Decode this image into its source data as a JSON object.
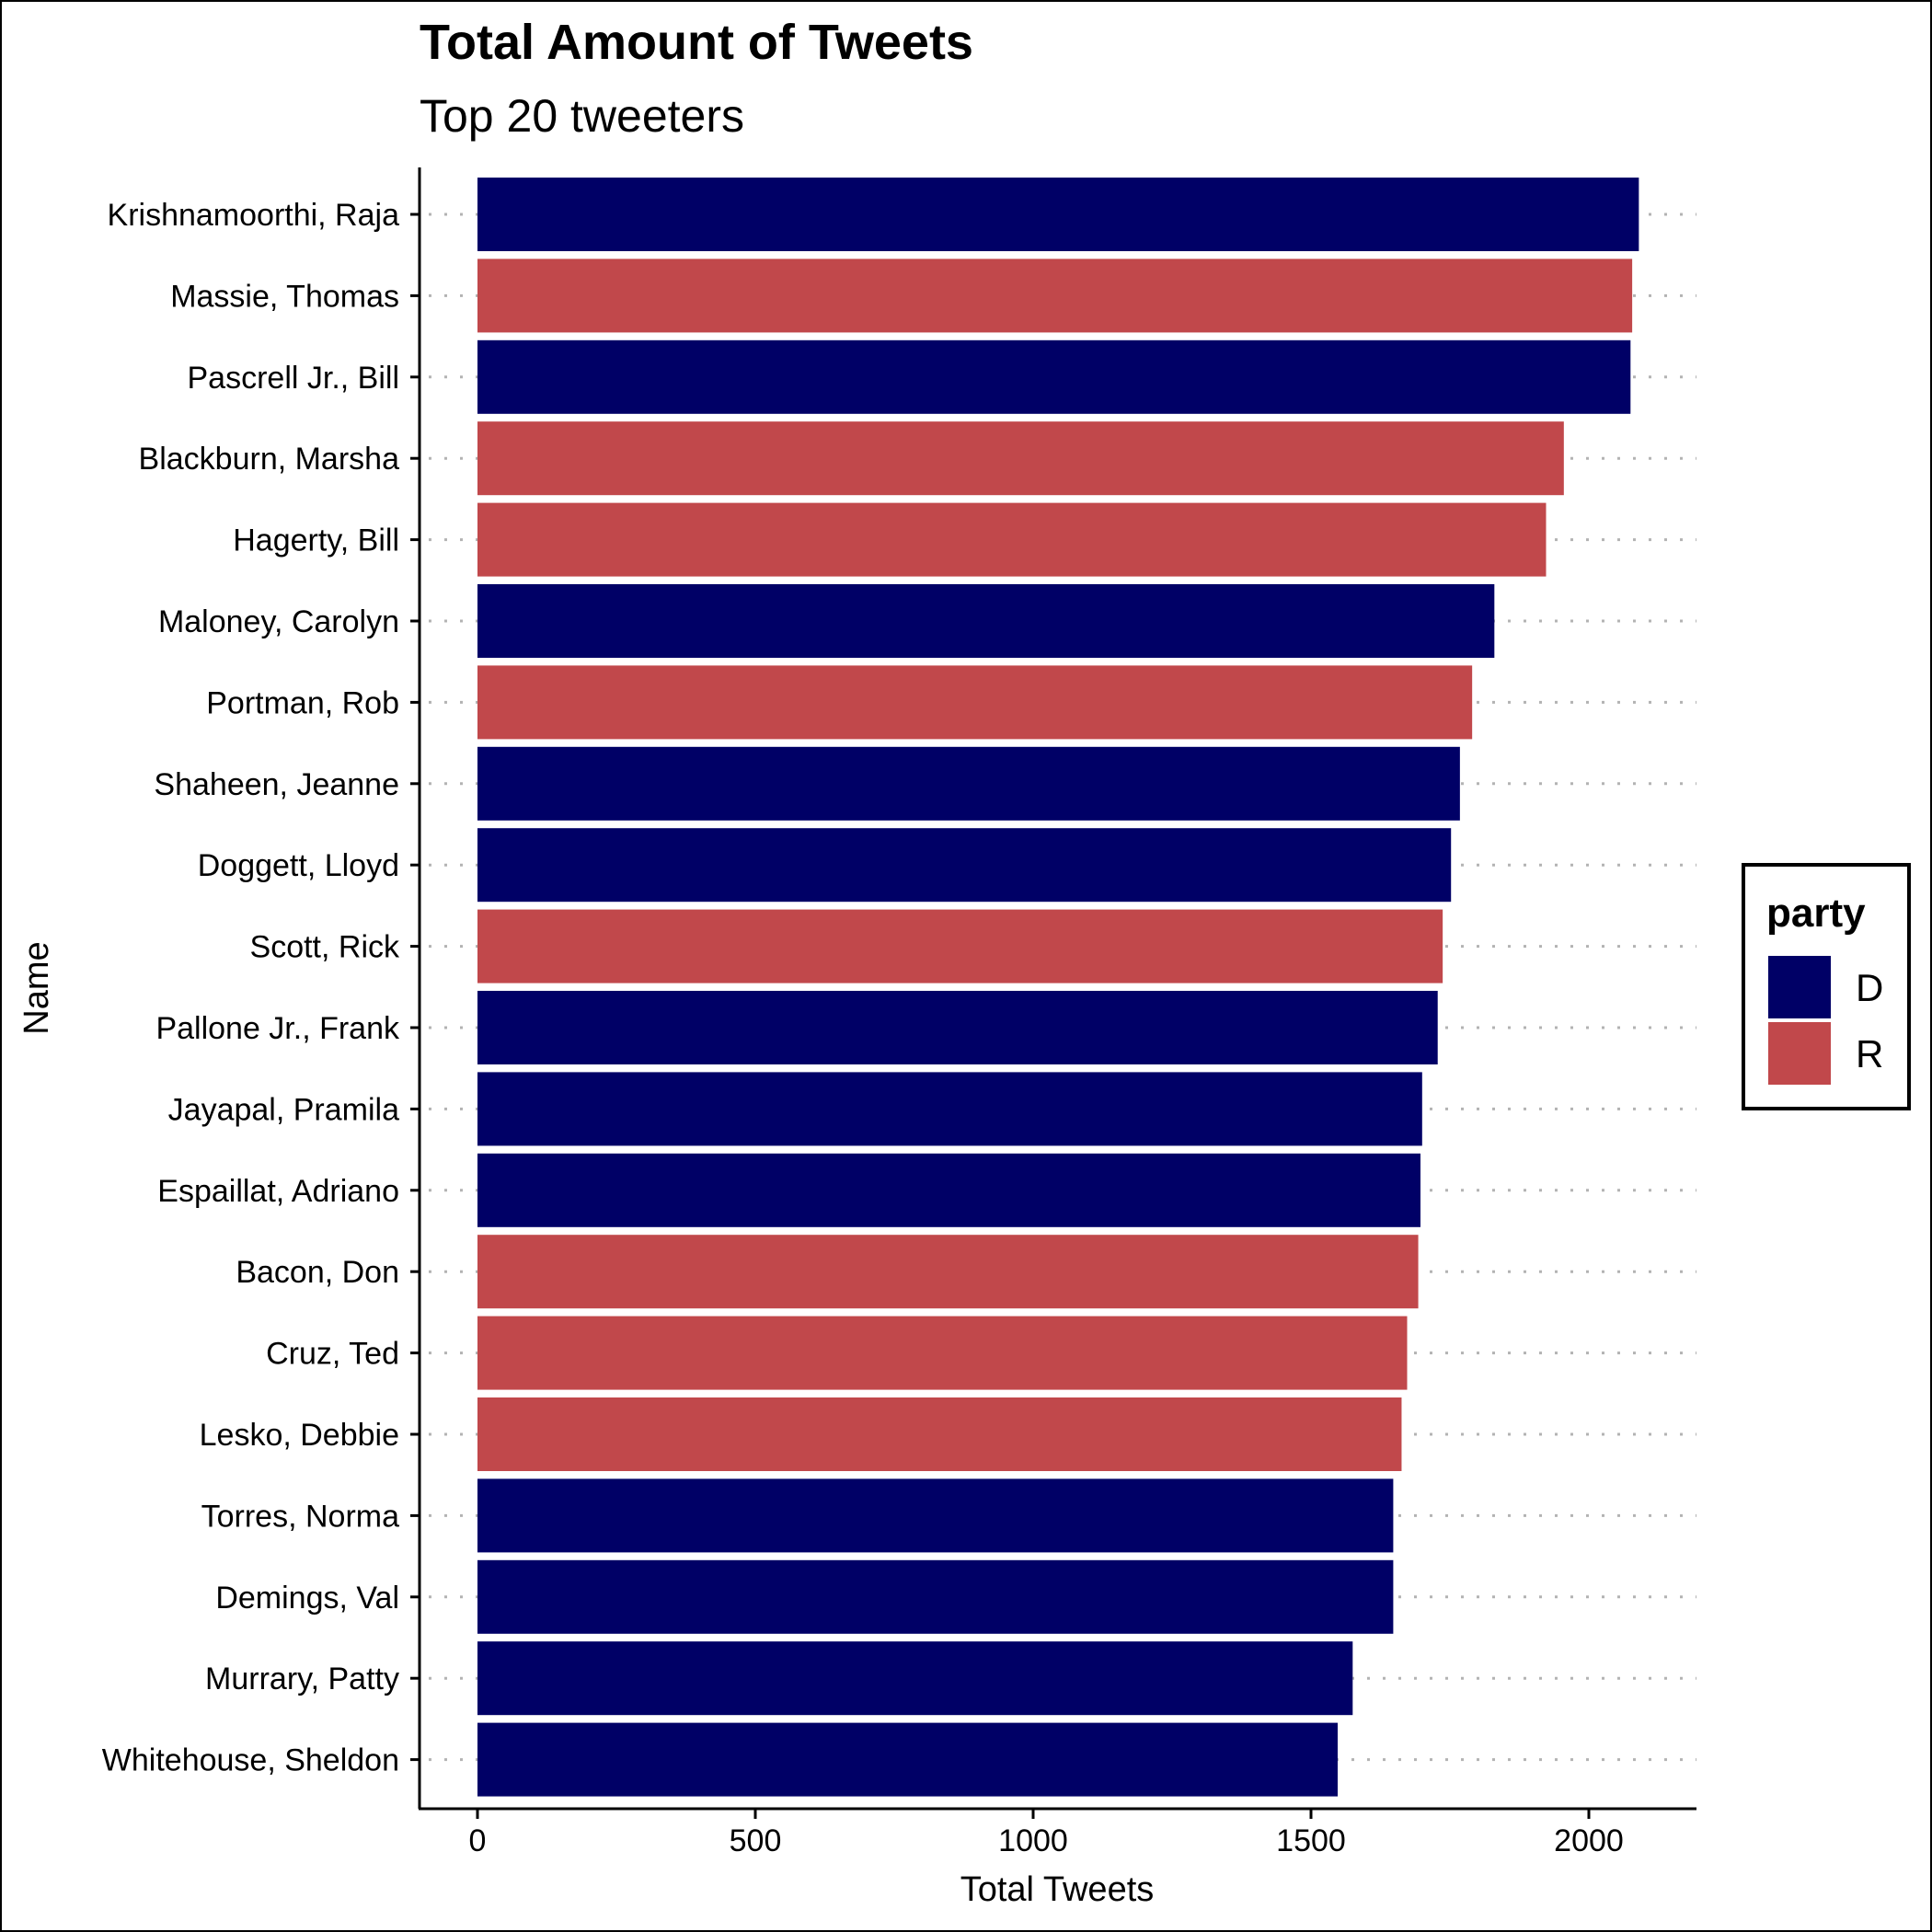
{
  "chart_data": {
    "type": "bar",
    "orientation": "horizontal",
    "title": "Total Amount of Tweets",
    "subtitle": "Top 20 tweeters",
    "xlabel": "Total Tweets",
    "ylabel": "Name",
    "xlim": [
      -100,
      2200
    ],
    "xticks": [
      0,
      500,
      1000,
      1500,
      2000
    ],
    "grid": "dotted horizontal",
    "legend": {
      "title": "party",
      "placement": "right",
      "entries": [
        {
          "label": "D",
          "color": "#000066"
        },
        {
          "label": "R",
          "color": "#C1484B"
        }
      ]
    },
    "categories": [
      "Krishnamoorthi, Raja",
      "Massie, Thomas",
      "Pascrell Jr., Bill",
      "Blackburn, Marsha",
      "Hagerty, Bill",
      "Maloney, Carolyn",
      "Portman, Rob",
      "Shaheen, Jeanne",
      "Doggett, Lloyd",
      "Scott, Rick",
      "Pallone Jr., Frank",
      "Jayapal, Pramila",
      "Espaillat, Adriano",
      "Bacon, Don",
      "Cruz, Ted",
      "Lesko, Debbie",
      "Torres, Norma",
      "Demings, Val",
      "Murrary, Patty",
      "Whitehouse, Sheldon"
    ],
    "values": [
      2090,
      2078,
      2075,
      1955,
      1923,
      1830,
      1790,
      1768,
      1752,
      1737,
      1728,
      1700,
      1697,
      1693,
      1673,
      1663,
      1648,
      1648,
      1575,
      1548
    ],
    "party": [
      "D",
      "R",
      "D",
      "R",
      "R",
      "D",
      "R",
      "D",
      "D",
      "R",
      "D",
      "D",
      "D",
      "R",
      "R",
      "R",
      "D",
      "D",
      "D",
      "D"
    ]
  }
}
